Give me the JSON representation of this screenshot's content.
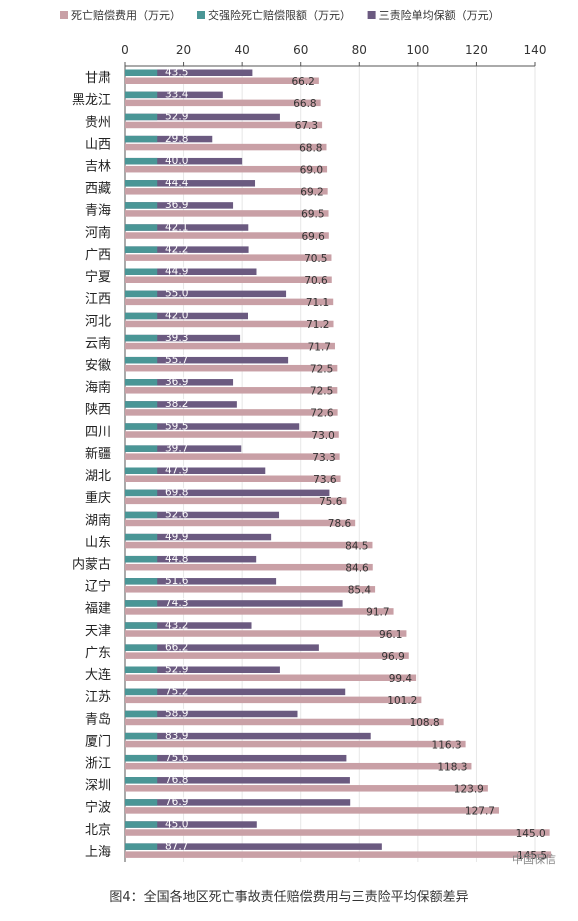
{
  "caption": "图4：全国各地区死亡事故责任赔偿费用与三责险平均保额差异",
  "watermark": "中国保信",
  "colors": {
    "death": "#c9a0a6",
    "compulsory": "#4a9696",
    "third_party": "#6b5a80",
    "axis": "#555555",
    "grid": "#e6e6e6"
  },
  "chart_data": {
    "type": "bar",
    "orientation": "horizontal",
    "title": "",
    "xlabel": "",
    "ylabel": "",
    "xlim": [
      0,
      140
    ],
    "xticks": [
      0,
      20,
      40,
      60,
      80,
      100,
      120,
      140
    ],
    "legend_position": "top",
    "categories": [
      "甘肃",
      "黑龙江",
      "贵州",
      "山西",
      "吉林",
      "西藏",
      "青海",
      "河南",
      "广西",
      "宁夏",
      "江西",
      "河北",
      "云南",
      "安徽",
      "海南",
      "陕西",
      "四川",
      "新疆",
      "湖北",
      "重庆",
      "湖南",
      "山东",
      "内蒙古",
      "辽宁",
      "福建",
      "天津",
      "广东",
      "大连",
      "江苏",
      "青岛",
      "厦门",
      "浙江",
      "深圳",
      "宁波",
      "北京",
      "上海"
    ],
    "series": [
      {
        "name": "死亡赔偿费用（万元）",
        "color": "#c9a0a6",
        "labeled": true,
        "values": [
          66.2,
          66.8,
          67.3,
          68.8,
          69.0,
          69.2,
          69.5,
          69.6,
          70.5,
          70.6,
          71.1,
          71.2,
          71.7,
          72.5,
          72.5,
          72.6,
          73.0,
          73.3,
          73.6,
          75.6,
          78.6,
          84.5,
          84.6,
          85.4,
          91.7,
          96.1,
          96.9,
          99.4,
          101.2,
          108.8,
          116.3,
          118.3,
          123.9,
          127.7,
          145.0,
          145.5
        ]
      },
      {
        "name": "交强险死亡赔偿限额（万元）",
        "color": "#4a9696",
        "labeled": false,
        "values": [
          11,
          11,
          11,
          11,
          11,
          11,
          11,
          11,
          11,
          11,
          11,
          11,
          11,
          11,
          11,
          11,
          11,
          11,
          11,
          11,
          11,
          11,
          11,
          11,
          11,
          11,
          11,
          11,
          11,
          11,
          11,
          11,
          11,
          11,
          11,
          11
        ]
      },
      {
        "name": "三责险单均保额（万元）",
        "color": "#6b5a80",
        "labeled": true,
        "values": [
          43.5,
          33.4,
          52.9,
          29.8,
          40.0,
          44.4,
          36.9,
          42.1,
          42.2,
          44.9,
          55.0,
          42.0,
          39.3,
          55.7,
          36.9,
          38.2,
          59.5,
          39.7,
          47.9,
          69.8,
          52.6,
          49.9,
          44.8,
          51.6,
          74.3,
          43.2,
          66.2,
          52.9,
          75.2,
          58.9,
          83.9,
          75.6,
          76.8,
          76.9,
          45.0,
          87.7
        ]
      }
    ]
  }
}
